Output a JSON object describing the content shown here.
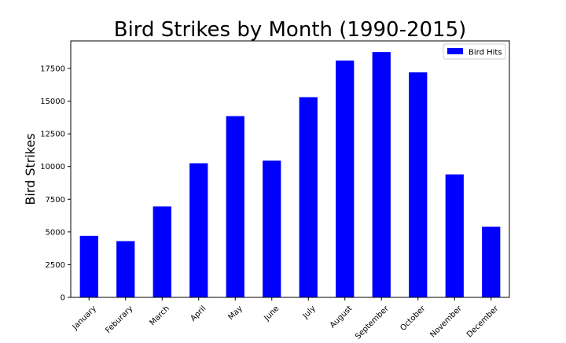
{
  "chart_data": {
    "type": "bar",
    "title": "Bird Strikes by Month (1990-2015)",
    "xlabel": "",
    "ylabel": "Bird Strikes",
    "categories": [
      "January",
      "Feburary",
      "March",
      "April",
      "May",
      "June",
      "July",
      "August",
      "September",
      "October",
      "November",
      "December"
    ],
    "series": [
      {
        "name": "Bird Hits",
        "color": "#0000ff",
        "values": [
          4700,
          4300,
          6950,
          10250,
          13850,
          10450,
          15300,
          18100,
          18750,
          17200,
          9400,
          5400
        ]
      }
    ],
    "ylim": [
      0,
      19600
    ],
    "yticks": [
      0,
      2500,
      5000,
      7500,
      10000,
      12500,
      15000,
      17500
    ],
    "ytick_labels": [
      "0",
      "2500",
      "5000",
      "7500",
      "10000",
      "12500",
      "15000",
      "17500"
    ],
    "grid": false,
    "legend": {
      "position": "top-right",
      "entries": [
        "Bird Hits"
      ]
    }
  }
}
